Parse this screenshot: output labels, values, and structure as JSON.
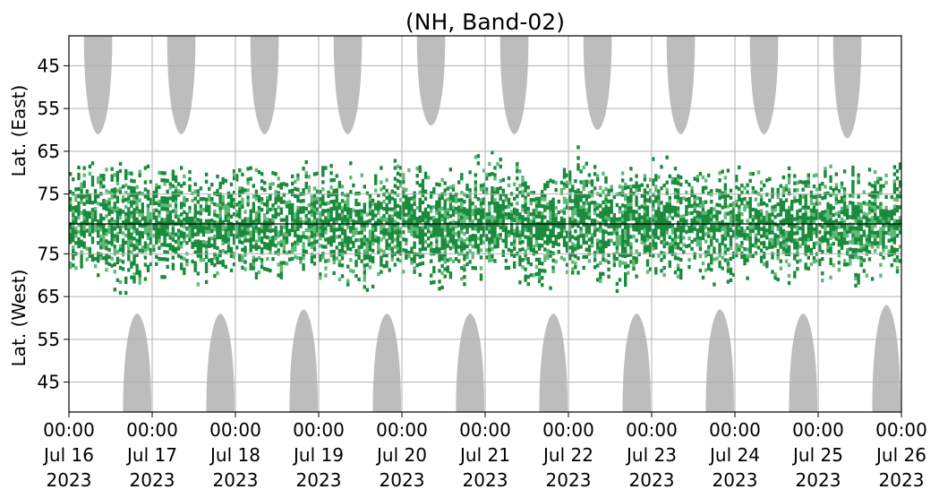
{
  "chart_data": {
    "type": "heatmap",
    "title": "(NH, Band-02)",
    "ylabel_top": "Lat. (East)",
    "ylabel_bottom": "Lat. (West)",
    "y_ticks_top": [
      "45",
      "55",
      "65",
      "75"
    ],
    "y_ticks_bottom": [
      "75",
      "65",
      "55",
      "45"
    ],
    "y_tick_values_top": [
      45,
      55,
      65,
      75
    ],
    "y_tick_values_bottom": [
      75,
      65,
      55,
      45
    ],
    "ylim_top": [
      38,
      82
    ],
    "ylim_bottom": [
      82,
      38
    ],
    "x_ticks": [
      {
        "time": "00:00",
        "date": "Jul 16",
        "year": "2023"
      },
      {
        "time": "00:00",
        "date": "Jul 17",
        "year": "2023"
      },
      {
        "time": "00:00",
        "date": "Jul 18",
        "year": "2023"
      },
      {
        "time": "00:00",
        "date": "Jul 19",
        "year": "2023"
      },
      {
        "time": "00:00",
        "date": "Jul 20",
        "year": "2023"
      },
      {
        "time": "00:00",
        "date": "Jul 21",
        "year": "2023"
      },
      {
        "time": "00:00",
        "date": "Jul 22",
        "year": "2023"
      },
      {
        "time": "00:00",
        "date": "Jul 23",
        "year": "2023"
      },
      {
        "time": "00:00",
        "date": "Jul 24",
        "year": "2023"
      },
      {
        "time": "00:00",
        "date": "Jul 25",
        "year": "2023"
      },
      {
        "time": "00:00",
        "date": "Jul 26",
        "year": "2023"
      }
    ],
    "xlim": [
      "2023-07-16 00:00",
      "2023-07-26 00:00"
    ],
    "grid": true,
    "colors": {
      "detection_strong": "#1a8a3c",
      "detection_weak": "#5fba78",
      "no_data": "#bdbdbd",
      "divider": "#000000",
      "grid": "#b0b0b0"
    },
    "no_data_top_centers_day": [
      0.35,
      1.35,
      2.35,
      3.35,
      4.35,
      5.35,
      6.35,
      7.35,
      8.35,
      9.35
    ],
    "no_data_bottom_centers_day": [
      0.82,
      1.82,
      2.82,
      3.82,
      4.82,
      5.82,
      6.82,
      7.82,
      8.82,
      9.82
    ],
    "no_data_top_reach_lat": [
      61,
      61,
      61,
      61,
      59,
      61,
      60,
      61,
      61,
      62
    ],
    "no_data_bottom_reach_lat": [
      61,
      61,
      62,
      61,
      61,
      61,
      61,
      62,
      61,
      63
    ]
  }
}
